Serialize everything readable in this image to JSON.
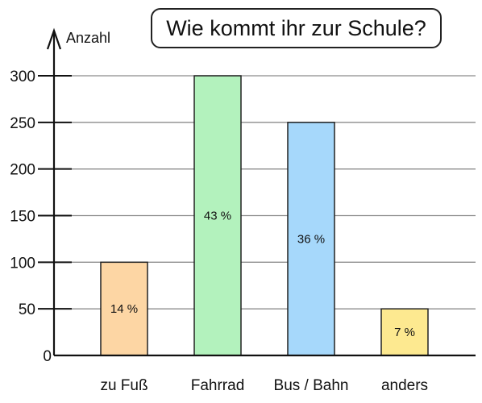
{
  "chart_data": {
    "type": "bar",
    "title": "Wie kommt ihr zur Schule?",
    "xlabel": "",
    "ylabel": "Anzahl",
    "categories": [
      "zu Fuß",
      "Fahrrad",
      "Bus / Bahn",
      "anders"
    ],
    "values": [
      100,
      300,
      250,
      50
    ],
    "bar_labels": [
      "14 %",
      "43 %",
      "36 %",
      "7 %"
    ],
    "bar_colors": [
      "#fdd6a4",
      "#b3f2bd",
      "#a6d8fb",
      "#fde990"
    ],
    "yticks": [
      0,
      50,
      100,
      150,
      200,
      250,
      300
    ],
    "ylim": [
      0,
      300
    ],
    "grid": true,
    "legend": "none"
  }
}
